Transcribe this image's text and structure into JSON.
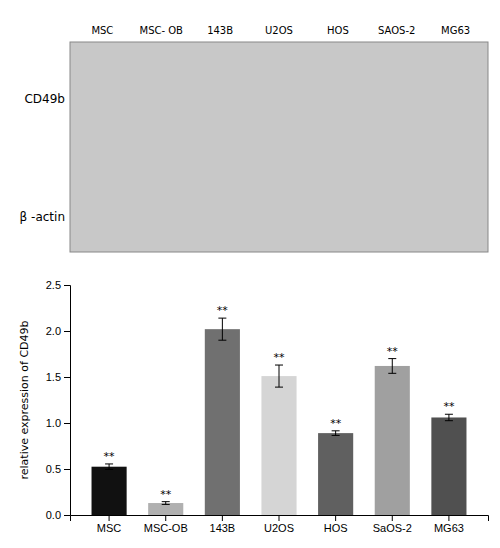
{
  "chart_data": [
    {
      "type": "blot",
      "categories": [
        "MSC",
        "MSC- OB",
        "143B",
        "U2OS",
        "HOS",
        "SAOS-2",
        "MG63"
      ],
      "annotations": [
        "CD49b",
        "β -actin"
      ],
      "color": "#c8c8c8"
    },
    {
      "type": "bar",
      "ylabel": "relative expression of CD49b",
      "categories": [
        "MSC",
        "MSC-OB",
        "143B",
        "U2OS",
        "HOS",
        "SaOS-2",
        "MG63"
      ],
      "values": [
        0.525,
        0.13,
        2.02,
        1.51,
        0.89,
        1.62,
        1.06
      ],
      "errors": [
        0.03,
        0.015,
        0.12,
        0.12,
        0.025,
        0.08,
        0.035
      ],
      "colors": [
        "#111111",
        "#b0b0b0",
        "#707070",
        "#d5d5d5",
        "#606060",
        "#a0a0a0",
        "#505050"
      ],
      "annotations": [
        "**",
        "**",
        "**",
        "**",
        "**",
        "**",
        "**"
      ],
      "ylim": [
        0,
        2.5
      ],
      "yticks": [
        {
          "value": 0.0,
          "label": "0.0"
        },
        0.5,
        {
          "value": 1.0,
          "label": "1.0"
        },
        1.5,
        {
          "value": 2.0,
          "label": "2.0"
        },
        2.5
      ],
      "grid": false
    }
  ]
}
